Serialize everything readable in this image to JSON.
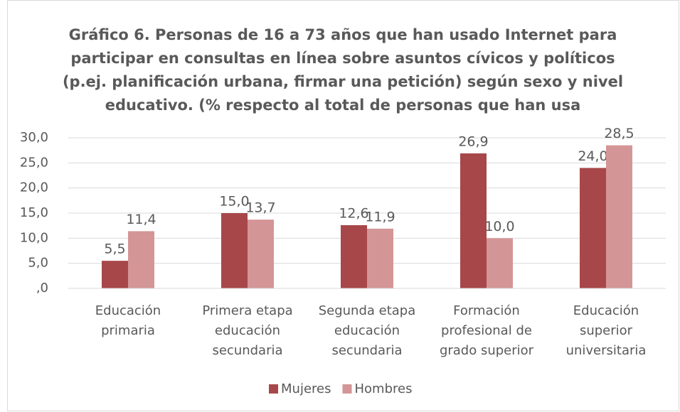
{
  "chart_data": {
    "type": "bar",
    "title": [
      "Gráfico 6. Personas de 16 a 73 años que han usado Internet para",
      "participar en consultas en línea sobre asuntos cívicos y políticos",
      "(p.ej. planificación urbana, firmar una petición) según sexo y nivel",
      "educativo. (% respecto al total de personas que han usa"
    ],
    "categories": [
      [
        "Educación",
        "primaria"
      ],
      [
        "Primera etapa",
        "educación",
        "secundaria"
      ],
      [
        "Segunda etapa",
        "educación",
        "secundaria"
      ],
      [
        "Formación",
        "profesional de",
        "grado superior"
      ],
      [
        "Educación",
        "superior",
        "universitaria"
      ]
    ],
    "series": [
      {
        "name": "Mujeres",
        "color": "#a8474a",
        "values": [
          5.5,
          15.0,
          12.6,
          26.9,
          24.0
        ],
        "value_labels": [
          "5,5",
          "15,0",
          "12,6",
          "26,9",
          "24,0"
        ]
      },
      {
        "name": "Hombres",
        "color": "#d49596",
        "values": [
          11.4,
          13.7,
          11.9,
          10.0,
          28.5
        ],
        "value_labels": [
          "11,4",
          "13,7",
          "11,9",
          "10,0",
          "28,5"
        ]
      }
    ],
    "ylim": [
      0,
      30
    ],
    "yticks": [
      {
        "value": 0,
        "label": ",0"
      },
      {
        "value": 5,
        "label": "5,0"
      },
      {
        "value": 10,
        "label": "10,0"
      },
      {
        "value": 15,
        "label": "15,0"
      },
      {
        "value": 20,
        "label": "20,0"
      },
      {
        "value": 25,
        "label": "25,0"
      },
      {
        "value": 30,
        "label": "30,0"
      }
    ],
    "grid": true,
    "legend": "bottom"
  }
}
